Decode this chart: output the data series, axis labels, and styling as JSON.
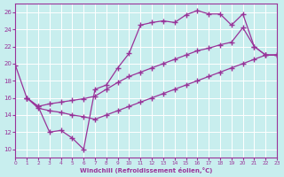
{
  "bg_color": "#c8eeee",
  "line_color": "#993399",
  "grid_color": "#ffffff",
  "xlim": [
    0,
    23
  ],
  "ylim": [
    9,
    27
  ],
  "yticks": [
    10,
    12,
    14,
    16,
    18,
    20,
    22,
    24,
    26
  ],
  "xticks": [
    0,
    1,
    2,
    3,
    4,
    5,
    6,
    7,
    8,
    9,
    10,
    11,
    12,
    13,
    14,
    15,
    16,
    17,
    18,
    19,
    20,
    21,
    22,
    23
  ],
  "xlabel": "Windchill (Refroidissement éolien,°C)",
  "curve1_x": [
    0,
    1,
    2,
    3,
    4,
    5,
    6,
    7,
    8,
    9,
    10,
    11,
    12,
    13,
    14,
    15,
    16,
    17,
    18,
    19,
    20,
    21,
    22,
    23
  ],
  "curve1_y": [
    19.8,
    16.0,
    15.0,
    12.0,
    12.2,
    11.3,
    10.0,
    17.0,
    17.5,
    19.5,
    21.2,
    24.5,
    24.8,
    25.0,
    24.8,
    25.7,
    26.2,
    25.8,
    25.8,
    24.5,
    25.8,
    22.0,
    21.0,
    21.0
  ],
  "curve2_x": [
    1,
    2,
    3,
    4,
    5,
    6,
    7,
    8,
    9,
    10,
    11,
    12,
    13,
    14,
    15,
    16,
    17,
    18,
    19,
    20,
    21,
    22,
    23
  ],
  "curve2_y": [
    16.0,
    15.0,
    15.3,
    15.5,
    15.7,
    15.9,
    16.2,
    17.0,
    17.8,
    18.5,
    19.0,
    19.5,
    20.0,
    20.5,
    21.0,
    21.5,
    21.8,
    22.2,
    22.5,
    24.2,
    22.0,
    21.0,
    21.0
  ],
  "curve3_x": [
    1,
    2,
    3,
    4,
    5,
    6,
    7,
    8,
    9,
    10,
    11,
    12,
    13,
    14,
    15,
    16,
    17,
    18,
    19,
    20,
    21,
    22,
    23
  ],
  "curve3_y": [
    16.0,
    14.8,
    14.5,
    14.3,
    14.0,
    13.8,
    13.5,
    14.0,
    14.5,
    15.0,
    15.5,
    16.0,
    16.5,
    17.0,
    17.5,
    18.0,
    18.5,
    19.0,
    19.5,
    20.0,
    20.5,
    21.0,
    21.0
  ]
}
